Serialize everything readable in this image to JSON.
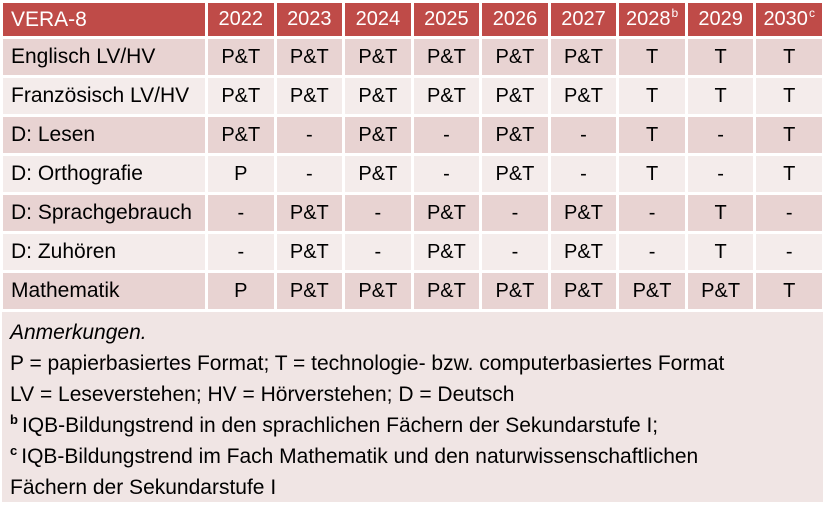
{
  "table": {
    "title": "VERA-8",
    "years": [
      {
        "label": "2022",
        "sup": ""
      },
      {
        "label": "2023",
        "sup": ""
      },
      {
        "label": "2024",
        "sup": ""
      },
      {
        "label": "2025",
        "sup": ""
      },
      {
        "label": "2026",
        "sup": ""
      },
      {
        "label": "2027",
        "sup": ""
      },
      {
        "label": "2028",
        "sup": "b"
      },
      {
        "label": "2029",
        "sup": ""
      },
      {
        "label": "2030",
        "sup": "c"
      }
    ],
    "rows": [
      {
        "label": "Englisch LV/HV",
        "cells": [
          "P&T",
          "P&T",
          "P&T",
          "P&T",
          "P&T",
          "P&T",
          "T",
          "T",
          "T"
        ],
        "red_cols": [
          6,
          7,
          8
        ]
      },
      {
        "label": "Französisch LV/HV",
        "cells": [
          "P&T",
          "P&T",
          "P&T",
          "P&T",
          "P&T",
          "P&T",
          "T",
          "T",
          "T"
        ],
        "red_cols": [
          6,
          7,
          8
        ]
      },
      {
        "label": "D: Lesen",
        "cells": [
          "P&T",
          "-",
          "P&T",
          "-",
          "P&T",
          "-",
          "T",
          "-",
          "T"
        ],
        "red_cols": [
          6,
          7,
          8
        ]
      },
      {
        "label": "D: Orthografie",
        "cells": [
          "P",
          "-",
          "P&T",
          "-",
          "P&T",
          "-",
          "T",
          "-",
          "T"
        ],
        "red_cols": [
          6,
          7,
          8
        ]
      },
      {
        "label": "D: Sprachgebrauch",
        "cells": [
          "-",
          "P&T",
          "-",
          "P&T",
          "-",
          "P&T",
          "-",
          "T",
          "-"
        ],
        "red_cols": [
          6,
          7,
          8
        ]
      },
      {
        "label": "D: Zuhören",
        "cells": [
          "-",
          "P&T",
          "-",
          "P&T",
          "-",
          "P&T",
          "-",
          "T",
          "-"
        ],
        "red_cols": [
          6,
          7,
          8
        ]
      },
      {
        "label": "Mathematik",
        "cells": [
          "P",
          "P&T",
          "P&T",
          "P&T",
          "P&T",
          "P&T",
          "P&T",
          "P&T",
          "T"
        ],
        "red_cols": [
          8
        ]
      }
    ]
  },
  "notes": {
    "lines": [
      {
        "sup": "",
        "text": "Anmerkungen.",
        "italic": true
      },
      {
        "sup": "",
        "text": "P = papierbasiertes Format; T = technologie- bzw. computerbasiertes Format",
        "italic": false
      },
      {
        "sup": "",
        "text": "LV = Leseverstehen; HV = Hörverstehen; D = Deutsch",
        "italic": false
      },
      {
        "sup": "b",
        "text": "IQB-Bildungstrend in den sprachlichen Fächern der Sekundarstufe I;",
        "italic": false
      },
      {
        "sup": "c",
        "text": "IQB-Bildungstrend im Fach Mathematik und den naturwissenschaftlichen",
        "italic": false
      },
      {
        "sup": "",
        "text": "Fächern der Sekundarstufe I",
        "italic": false
      }
    ]
  },
  "colors": {
    "header_bg": "#BF4B48",
    "header_text": "#FFFFFF",
    "band_dark": "#E8D3D2",
    "band_light": "#F4ECEB",
    "notes_bg": "#F0E5E4",
    "accent_text": "#9E3D3A",
    "body_text": "#000000"
  }
}
